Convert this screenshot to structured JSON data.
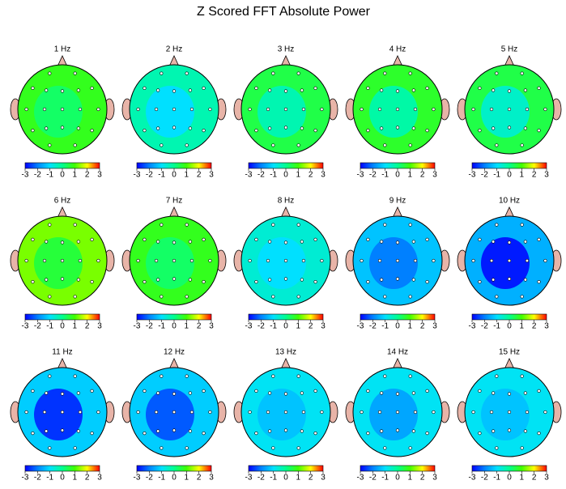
{
  "chart_data": {
    "type": "topomap",
    "title": "Z Scored FFT Absolute Power",
    "panels": [
      {
        "label": "1 Hz",
        "outer": 0.8,
        "center": 0.3
      },
      {
        "label": "2 Hz",
        "outer": -0.3,
        "center": -1
      },
      {
        "label": "3 Hz",
        "outer": 0.5,
        "center": -0.3
      },
      {
        "label": "4 Hz",
        "outer": 0.7,
        "center": -0.2
      },
      {
        "label": "5 Hz",
        "outer": 0.5,
        "center": -0.5
      },
      {
        "label": "6 Hz",
        "outer": 1.3,
        "center": 0.6
      },
      {
        "label": "7 Hz",
        "outer": 0.8,
        "center": 0.3
      },
      {
        "label": "8 Hz",
        "outer": -0.6,
        "center": -1
      },
      {
        "label": "9 Hz",
        "outer": -1.3,
        "center": -2
      },
      {
        "label": "10 Hz",
        "outer": -1.5,
        "center": -2.8
      },
      {
        "label": "11 Hz",
        "outer": -1.2,
        "center": -2.6
      },
      {
        "label": "12 Hz",
        "outer": -1.2,
        "center": -2.3
      },
      {
        "label": "13 Hz",
        "outer": -0.9,
        "center": -1.3
      },
      {
        "label": "14 Hz",
        "outer": -0.9,
        "center": -1.6
      },
      {
        "label": "15 Hz",
        "outer": -0.9,
        "center": -1.3
      }
    ],
    "zlim": [
      -3,
      3
    ],
    "zticks": [
      -3,
      -2,
      -1,
      0,
      1,
      2,
      3
    ],
    "colormap": [
      "#0000ff",
      "#0080ff",
      "#00e0ff",
      "#00ff90",
      "#40ff00",
      "#ffff00",
      "#ff0000"
    ]
  }
}
